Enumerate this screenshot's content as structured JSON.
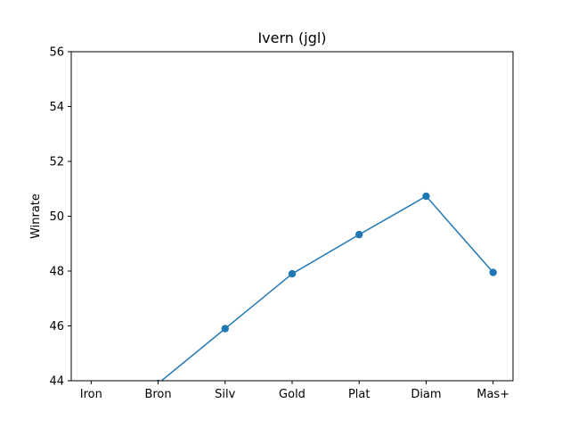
{
  "chart_data": {
    "type": "line",
    "title": "Ivern (jgl)",
    "xlabel": "",
    "ylabel": "Winrate",
    "categories": [
      "Iron",
      "Bron",
      "Silv",
      "Gold",
      "Plat",
      "Diam",
      "Mas+"
    ],
    "series": [
      {
        "values": [
          null,
          43.9,
          45.9,
          47.9,
          49.33,
          50.73,
          47.95
        ],
        "color": "#1f77b4"
      }
    ],
    "ylim": [
      44,
      56
    ],
    "yticks": [
      44,
      46,
      48,
      50,
      52,
      54,
      56
    ],
    "grid": false,
    "legend": "none"
  }
}
